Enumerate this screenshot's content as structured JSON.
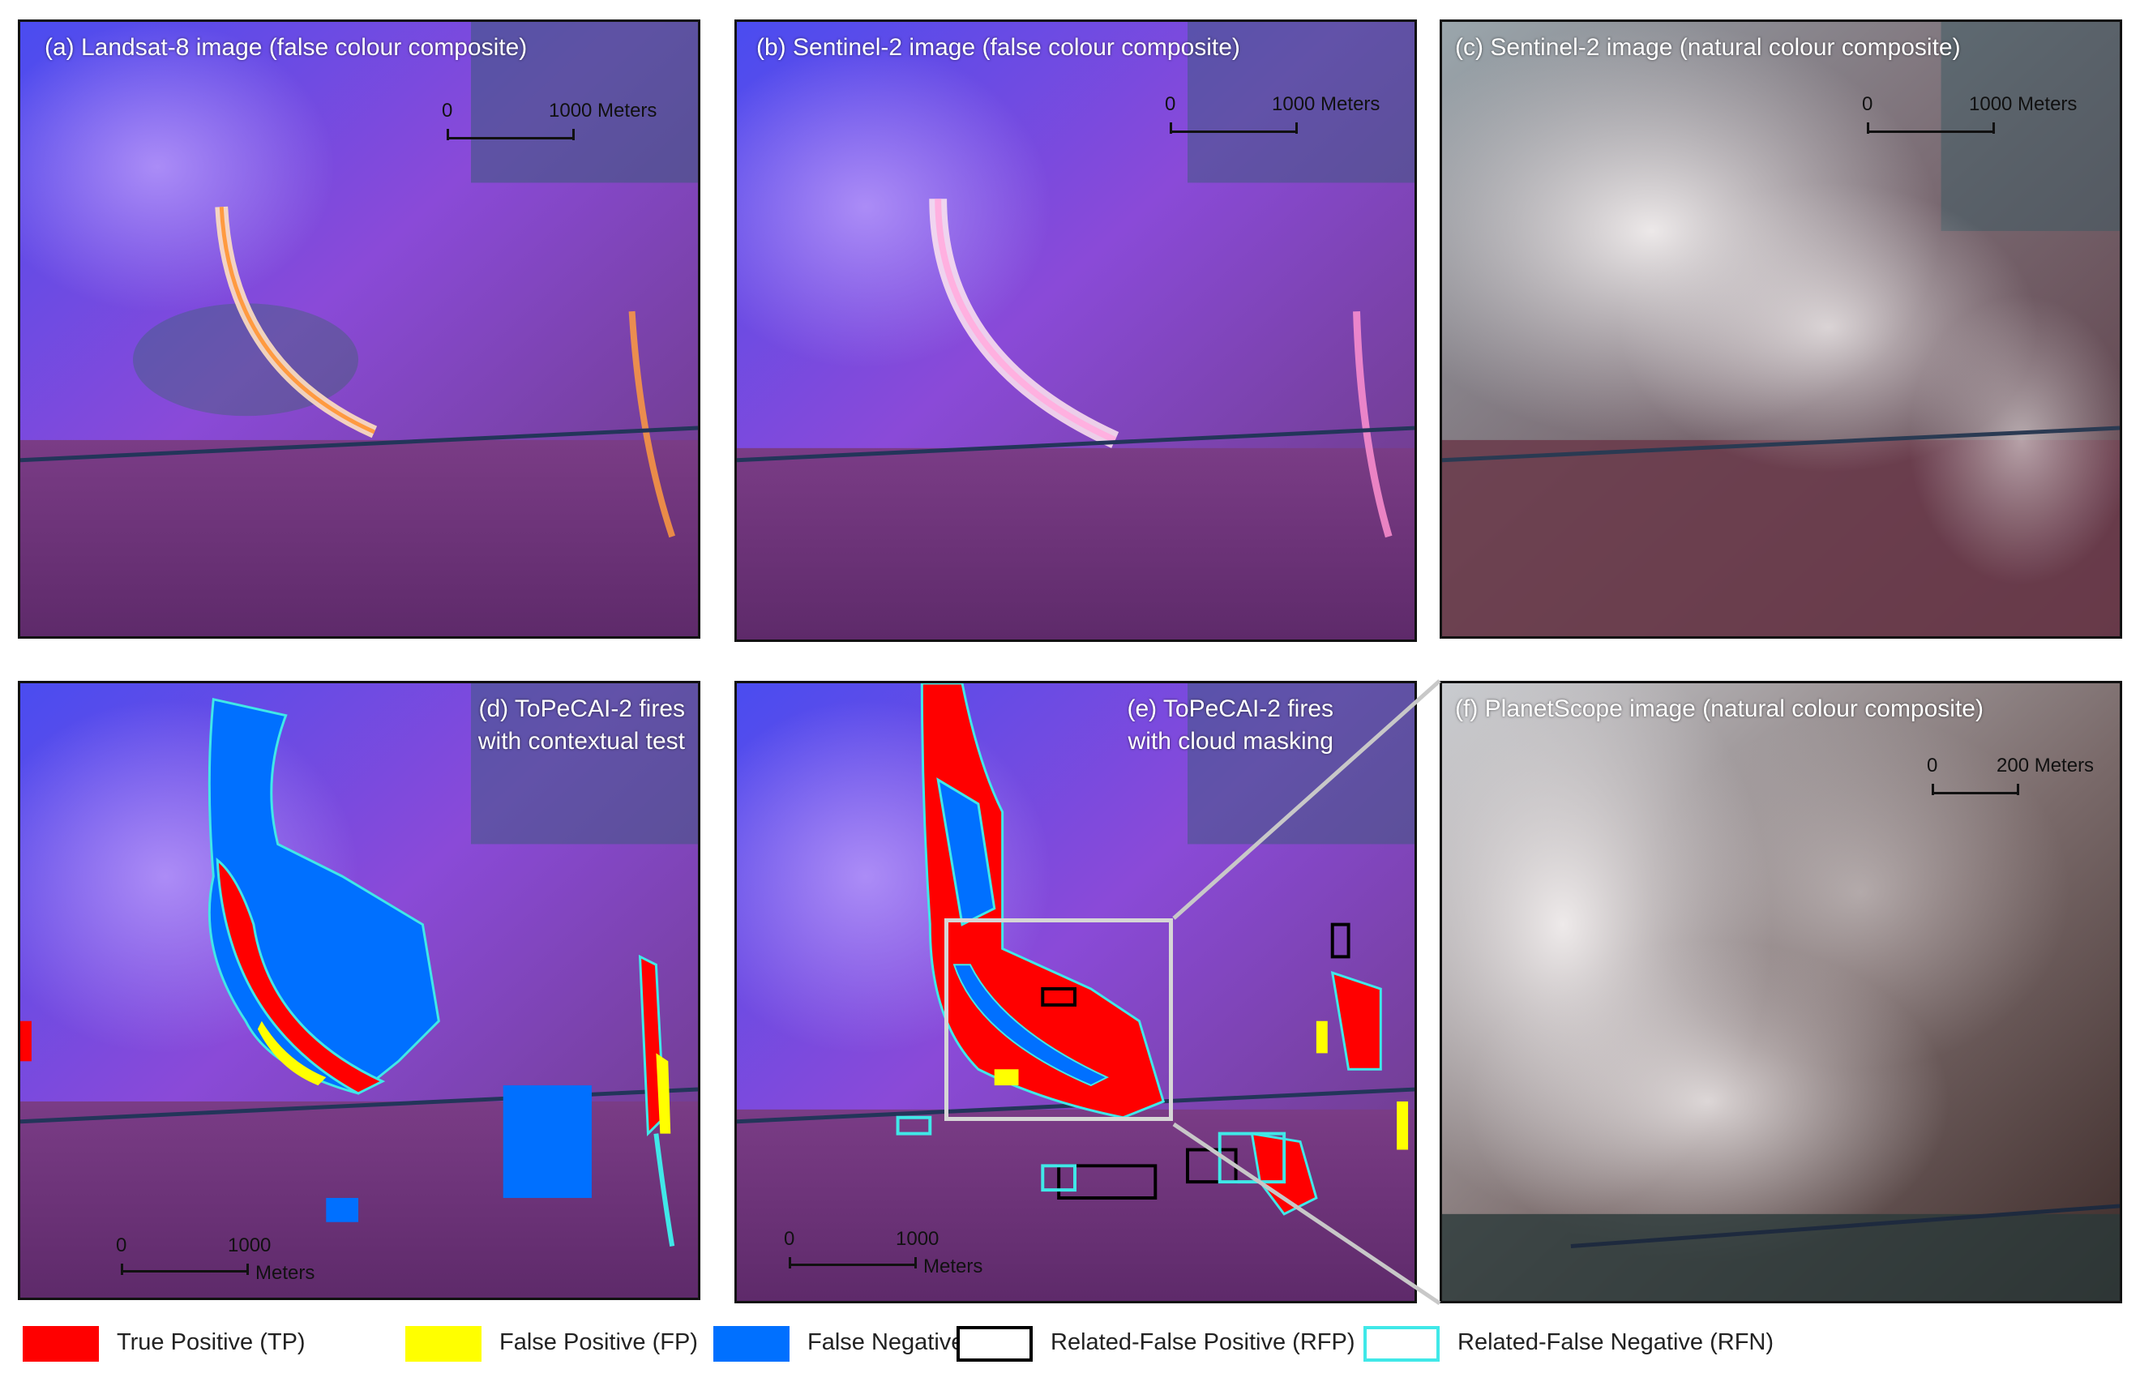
{
  "panels": {
    "a": {
      "title": "(a) Landsat-8 image (false colour composite)",
      "scale": {
        "zero": "0",
        "dist": "1000 Meters",
        "units": ""
      }
    },
    "b": {
      "title": "(b) Sentinel-2 image (false colour composite)",
      "scale": {
        "zero": "0",
        "dist": "1000 Meters",
        "units": ""
      }
    },
    "c": {
      "title": "(c) Sentinel-2 image (natural colour composite)",
      "scale": {
        "zero": "0",
        "dist": "1000 Meters",
        "units": ""
      }
    },
    "d": {
      "title_line1": "(d) ToPeCAI-2 fires",
      "title_line2": "with contextual test",
      "scale": {
        "zero": "0",
        "dist": "1000",
        "units": "Meters"
      }
    },
    "e": {
      "title_line1": "(e) ToPeCAI-2 fires",
      "title_line2": "with cloud masking",
      "scale": {
        "zero": "0",
        "dist": "1000",
        "units": "Meters"
      }
    },
    "f": {
      "title": "(f) PlanetScope image (natural colour composite)",
      "scale": {
        "zero": "0",
        "dist": "200 Meters",
        "units": ""
      }
    }
  },
  "legend": [
    {
      "label": "True Positive (TP)",
      "fill": "#ff0000",
      "border": "#ff0000"
    },
    {
      "label": "False Positive (FP)",
      "fill": "#ffff00",
      "border": "#ffff00"
    },
    {
      "label": "False Negative (FN)",
      "fill": "#0070ff",
      "border": "#0070ff"
    },
    {
      "label": "Related-False Positive (RFP)",
      "fill": "#ffffff",
      "border": "#000000"
    },
    {
      "label": "Related-False Negative (RFN)",
      "fill": "#ffffff",
      "border": "#40e8e8"
    }
  ]
}
